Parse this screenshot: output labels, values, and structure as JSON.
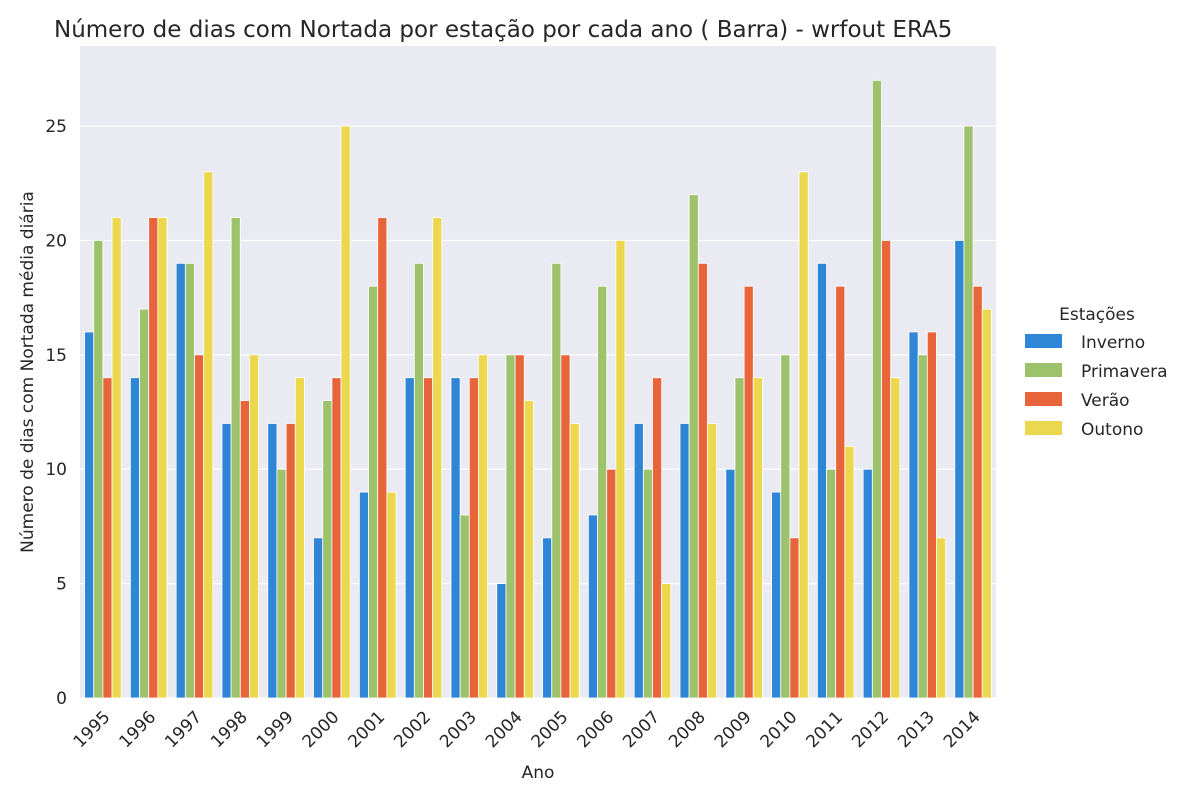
{
  "chart_data": {
    "type": "bar",
    "title": "Número de dias com Nortada por estação por cada ano ( Barra) - wrfout ERA5",
    "xlabel": "Ano",
    "ylabel": "Número de dias com Nortada média diária",
    "ylim": [
      0,
      28.5
    ],
    "yticks": [
      0,
      5,
      10,
      15,
      20,
      25
    ],
    "grid": true,
    "legend": {
      "title": "Estações",
      "position": "right"
    },
    "categories": [
      "1995",
      "1996",
      "1997",
      "1998",
      "1999",
      "2000",
      "2001",
      "2002",
      "2003",
      "2004",
      "2005",
      "2006",
      "2007",
      "2008",
      "2009",
      "2010",
      "2011",
      "2012",
      "2013",
      "2014"
    ],
    "series": [
      {
        "name": "Inverno",
        "color": "#2f86d6",
        "values": [
          16,
          14,
          19,
          12,
          12,
          7,
          9,
          14,
          14,
          5,
          7,
          8,
          12,
          12,
          10,
          9,
          19,
          10,
          16,
          20
        ]
      },
      {
        "name": "Primavera",
        "color": "#9cc36b",
        "values": [
          20,
          17,
          19,
          21,
          10,
          13,
          18,
          19,
          8,
          15,
          19,
          18,
          10,
          22,
          14,
          15,
          10,
          27,
          15,
          25
        ]
      },
      {
        "name": "Verão",
        "color": "#e8643a",
        "values": [
          14,
          21,
          15,
          13,
          12,
          14,
          21,
          14,
          14,
          15,
          15,
          10,
          14,
          19,
          18,
          7,
          18,
          20,
          16,
          18
        ]
      },
      {
        "name": "Outono",
        "color": "#ecd84e",
        "values": [
          21,
          21,
          23,
          15,
          14,
          25,
          9,
          21,
          15,
          13,
          12,
          20,
          5,
          12,
          14,
          23,
          11,
          14,
          7,
          17
        ]
      }
    ]
  }
}
